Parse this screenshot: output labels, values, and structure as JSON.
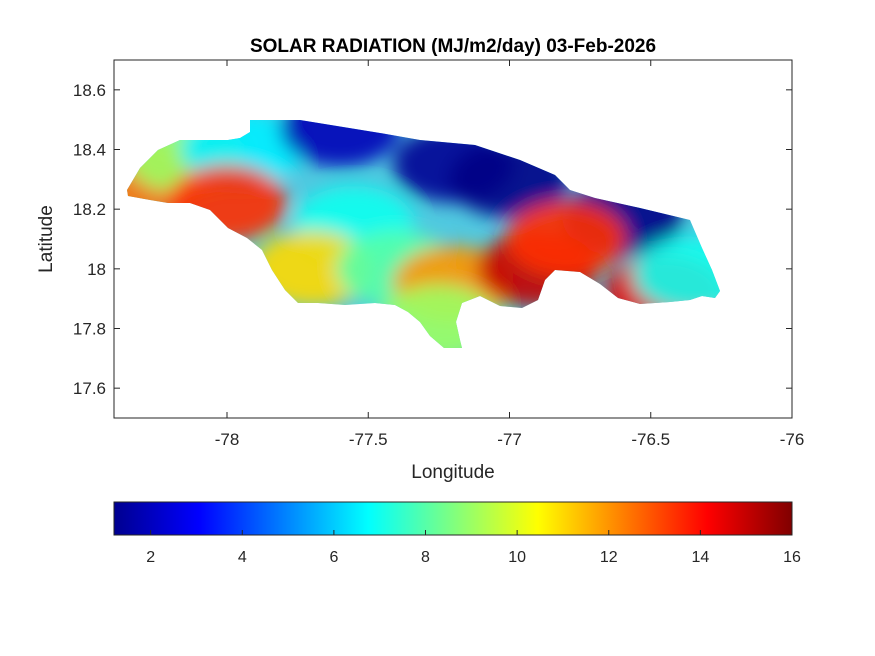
{
  "chart_data": {
    "type": "heatmap",
    "title": "SOLAR RADIATION (MJ/m2/day) 03-Feb-2026",
    "xlabel": "Longitude",
    "ylabel": "Latitude",
    "xlim": [
      -78.4,
      -76
    ],
    "ylim": [
      17.5,
      18.7
    ],
    "xticks": [
      -78,
      -77.5,
      -77,
      -76.5,
      -76
    ],
    "yticks": [
      17.6,
      17.8,
      18,
      18.2,
      18.4,
      18.6
    ],
    "colorbar": {
      "colormap": "jet",
      "range": [
        1.2,
        16
      ],
      "ticks": [
        2,
        4,
        6,
        8,
        10,
        12,
        14,
        16
      ],
      "placement": "bottom"
    },
    "regions": [
      {
        "lon": -78.3,
        "lat": 18.3,
        "value": 12.5
      },
      {
        "lon": -78.15,
        "lat": 18.38,
        "value": 9
      },
      {
        "lon": -77.95,
        "lat": 18.4,
        "value": 6.5
      },
      {
        "lon": -78.0,
        "lat": 18.22,
        "value": 13.5
      },
      {
        "lon": -77.6,
        "lat": 18.47,
        "value": 2
      },
      {
        "lon": -77.2,
        "lat": 18.35,
        "value": 1.5
      },
      {
        "lon": -77.0,
        "lat": 18.3,
        "value": 1.3
      },
      {
        "lon": -76.6,
        "lat": 18.17,
        "value": 1.3
      },
      {
        "lon": -77.55,
        "lat": 18.15,
        "value": 7
      },
      {
        "lon": -77.7,
        "lat": 18.0,
        "value": 11
      },
      {
        "lon": -77.4,
        "lat": 18.0,
        "value": 8
      },
      {
        "lon": -77.2,
        "lat": 17.95,
        "value": 12
      },
      {
        "lon": -76.9,
        "lat": 18.0,
        "value": 15
      },
      {
        "lon": -76.8,
        "lat": 18.1,
        "value": 13.5
      },
      {
        "lon": -76.45,
        "lat": 17.92,
        "value": 14.5
      },
      {
        "lon": -77.25,
        "lat": 17.82,
        "value": 9
      },
      {
        "lon": -76.35,
        "lat": 17.98,
        "value": 7
      }
    ]
  }
}
